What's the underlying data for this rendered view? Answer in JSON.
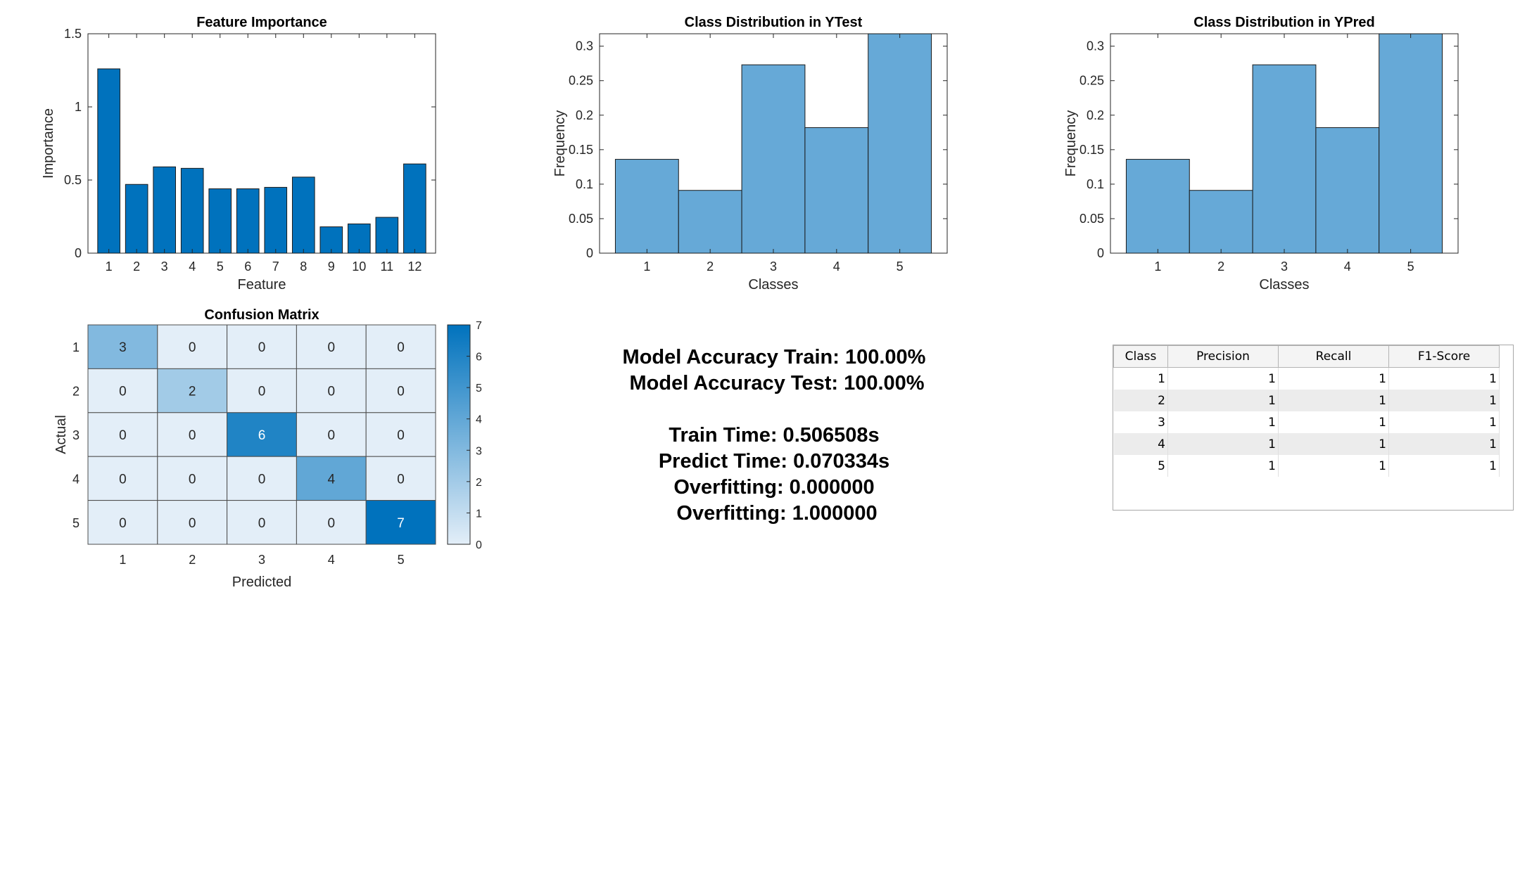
{
  "chart_data": [
    {
      "type": "bar",
      "title": "Feature Importance",
      "xlabel": "Feature",
      "ylabel": "Importance",
      "categories": [
        "1",
        "2",
        "3",
        "4",
        "5",
        "6",
        "7",
        "8",
        "9",
        "10",
        "11",
        "12"
      ],
      "values": [
        1.26,
        0.47,
        0.59,
        0.58,
        0.44,
        0.44,
        0.45,
        0.52,
        0.18,
        0.2,
        0.245,
        0.61
      ],
      "ylim": [
        0,
        1.5
      ],
      "yticks": [
        "0",
        "0.5",
        "1",
        "1.5"
      ],
      "color": "#0072BD"
    },
    {
      "type": "bar",
      "title": "Class Distribution in YTest",
      "xlabel": "Classes",
      "ylabel": "Frequency",
      "categories": [
        "1",
        "2",
        "3",
        "4",
        "5"
      ],
      "values": [
        0.136,
        0.091,
        0.273,
        0.182,
        0.318
      ],
      "ylim": [
        0,
        0.318
      ],
      "yticks": [
        "0",
        "0.05",
        "0.1",
        "0.15",
        "0.2",
        "0.25",
        "0.3"
      ],
      "color": "#66A9D7"
    },
    {
      "type": "bar",
      "title": "Class Distribution in YPred",
      "xlabel": "Classes",
      "ylabel": "Frequency",
      "categories": [
        "1",
        "2",
        "3",
        "4",
        "5"
      ],
      "values": [
        0.136,
        0.091,
        0.273,
        0.182,
        0.318
      ],
      "ylim": [
        0,
        0.318
      ],
      "yticks": [
        "0",
        "0.05",
        "0.1",
        "0.15",
        "0.2",
        "0.25",
        "0.3"
      ],
      "color": "#66A9D7"
    },
    {
      "type": "heatmap",
      "title": "Confusion Matrix",
      "xlabel": "Predicted",
      "ylabel": "Actual",
      "xcategories": [
        "1",
        "2",
        "3",
        "4",
        "5"
      ],
      "ycategories": [
        "1",
        "2",
        "3",
        "4",
        "5"
      ],
      "values": [
        [
          3,
          0,
          0,
          0,
          0
        ],
        [
          0,
          2,
          0,
          0,
          0
        ],
        [
          0,
          0,
          6,
          0,
          0
        ],
        [
          0,
          0,
          0,
          4,
          0
        ],
        [
          0,
          0,
          0,
          0,
          7
        ]
      ],
      "colorbar": [
        "0",
        "1",
        "2",
        "3",
        "4",
        "5",
        "6",
        "7"
      ],
      "color_low": "#E3EEF8",
      "color_high": "#0072BD"
    }
  ],
  "metrics": [
    "Model Accuracy Train: 100.00%",
    " Model Accuracy Test: 100.00%",
    "",
    "Train Time: 0.506508s",
    "Predict Time: 0.070334s",
    "Overfitting: 0.000000",
    " Overfitting: 1.000000"
  ],
  "table": {
    "columns": [
      "Class",
      "Precision",
      "Recall",
      "F1-Score"
    ],
    "rows": [
      [
        "1",
        "1",
        "1",
        "1"
      ],
      [
        "2",
        "1",
        "1",
        "1"
      ],
      [
        "3",
        "1",
        "1",
        "1"
      ],
      [
        "4",
        "1",
        "1",
        "1"
      ],
      [
        "5",
        "1",
        "1",
        "1"
      ]
    ]
  }
}
